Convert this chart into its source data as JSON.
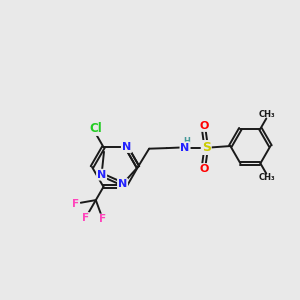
{
  "background_color": "#e9e9e9",
  "bond_color": "#1a1a1a",
  "bond_width": 1.4,
  "atom_colors": {
    "N": "#2222ff",
    "Cl": "#22cc22",
    "F": "#ff44bb",
    "S": "#cccc00",
    "O": "#ff0000",
    "H": "#449999",
    "C": "#1a1a1a"
  },
  "font_size": 7.5,
  "figsize": [
    3.0,
    3.0
  ],
  "dpi": 100,
  "xlim": [
    0,
    10
  ],
  "ylim": [
    0,
    10
  ]
}
